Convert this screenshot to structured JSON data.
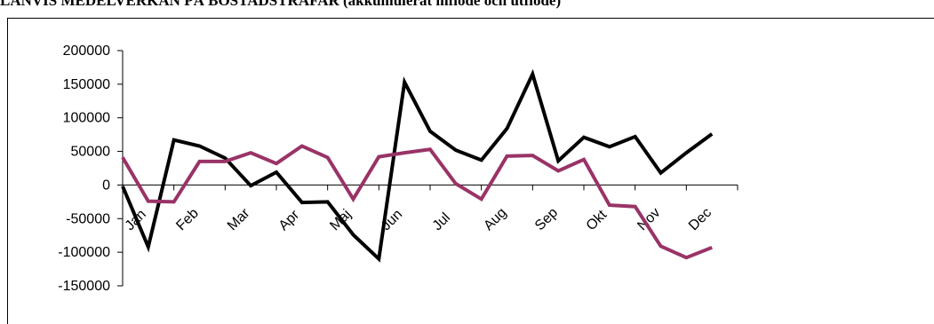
{
  "page": {
    "title": "LÄNVIS MEDELVERKAN PÅ BOSTADSTRÄFAR (akkumulerat inflöde och utflöde)"
  },
  "chart_data": {
    "type": "line",
    "title": "",
    "xlabel": "",
    "ylabel": "",
    "ylim": [
      -150000,
      200000
    ],
    "yticks": [
      200000,
      150000,
      100000,
      50000,
      0,
      -50000,
      -100000,
      -150000
    ],
    "ytick_labels": [
      "200000",
      "150000",
      "100000",
      "50000",
      "0",
      "-50000",
      "-100000",
      "-150000"
    ],
    "categories": [
      "Jan",
      "Feb",
      "Mar",
      "Apr",
      "Maj",
      "Jun",
      "Jul",
      "Aug",
      "Sep",
      "Okt",
      "Nov",
      "Dec"
    ],
    "x": [
      0,
      0.5,
      1,
      1.5,
      2,
      2.5,
      3,
      3.5,
      4,
      4.5,
      5,
      5.5,
      6,
      6.5,
      7,
      7.5,
      8,
      8.5,
      9,
      9.5,
      10,
      10.5,
      11,
      11.5,
      12
    ],
    "series": [
      {
        "color": "#000000",
        "values": [
          -2000,
          -92000,
          67000,
          58000,
          40000,
          -1000,
          19000,
          -26000,
          -25000,
          -74000,
          -110000,
          153000,
          80000,
          52000,
          37000,
          84000,
          165000,
          36000,
          71000,
          57000,
          72000,
          18000,
          48000,
          76000,
          null
        ]
      },
      {
        "color": "#993366",
        "values": [
          41000,
          -24000,
          -25000,
          35000,
          35000,
          48000,
          32000,
          58000,
          41000,
          -21000,
          42000,
          48000,
          53000,
          2000,
          -21000,
          43000,
          44000,
          21000,
          38000,
          -30000,
          -32000,
          -91000,
          -108000,
          -93000,
          null
        ]
      }
    ],
    "grid": false,
    "legend": "none"
  }
}
